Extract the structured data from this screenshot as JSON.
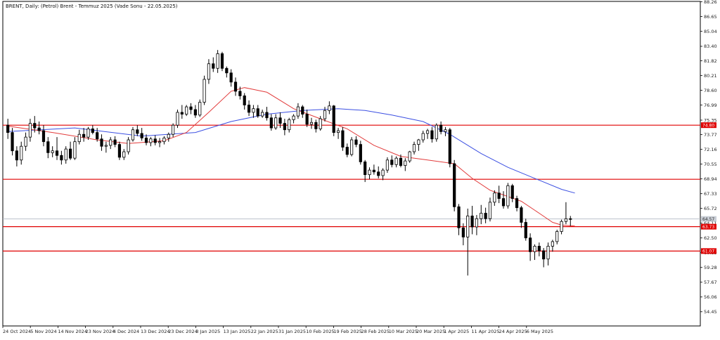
{
  "title": "BRENT, Daily:  (Petrol) Brent - Temmuz 2025 (Vade Sonu - 22.05.2025)",
  "colors": {
    "background": "#ffffff",
    "frame": "#000000",
    "candle": "#000000",
    "ma_fast": "#e23b3b",
    "ma_slow": "#3b4fe2",
    "hline": "#e00000",
    "current_line": "#b0b7c3",
    "tag_red": "#e00000",
    "tag_gray": "#c9ced6"
  },
  "chart_data": {
    "type": "candlestick",
    "title": "BRENT, Daily:  (Petrol) Brent - Temmuz 2025 (Vade Sonu - 22.05.2025)",
    "ylim": [
      52.9,
      88.3
    ],
    "y_ticks": [
      "88.26",
      "86.65",
      "85.04",
      "83.40",
      "81.82",
      "80.21",
      "78.60",
      "76.99",
      "75.35",
      "73.77",
      "72.16",
      "70.55",
      "68.94",
      "67.33",
      "65.72",
      "64.11",
      "62.50",
      "60.89",
      "59.28",
      "57.67",
      "56.06",
      "54.45"
    ],
    "x_labels": [
      "24 Oct 2024",
      "5 Nov 2024",
      "14 Nov 2024",
      "23 Nov 2024",
      "4 Dec 2024",
      "13 Dec 2024",
      "23 Dec 2024",
      "3 Jan 2025",
      "13 Jan 2025",
      "22 Jan 2025",
      "31 Jan 2025",
      "10 Feb 2025",
      "19 Feb 2025",
      "28 Feb 2025",
      "10 Mar 2025",
      "20 Mar 2025",
      "1 Apr 2025",
      "11 Apr 2025",
      "24 Apr 2025",
      "6 May 2025"
    ],
    "horizontal_lines": [
      {
        "value": 74.8,
        "label": "74.80"
      },
      {
        "value": 68.9,
        "label": ""
      },
      {
        "value": 63.73,
        "label": "63.73"
      },
      {
        "value": 61.07,
        "label": "61.07"
      }
    ],
    "current_price": {
      "value": 64.57,
      "label": "64.57"
    },
    "ohlc": [
      [
        74.8,
        75.5,
        73.3,
        74.0
      ],
      [
        74.0,
        74.5,
        71.5,
        72.0
      ],
      [
        72.0,
        72.5,
        70.3,
        71.0
      ],
      [
        71.0,
        73.0,
        70.5,
        72.5
      ],
      [
        72.5,
        74.0,
        72.0,
        73.5
      ],
      [
        73.5,
        75.5,
        73.0,
        75.0
      ],
      [
        75.0,
        75.8,
        74.0,
        74.5
      ],
      [
        74.5,
        75.2,
        73.8,
        74.2
      ],
      [
        74.2,
        74.8,
        72.5,
        73.0
      ],
      [
        73.0,
        73.5,
        71.2,
        71.8
      ],
      [
        71.8,
        72.5,
        71.3,
        72.0
      ],
      [
        72.0,
        73.5,
        71.0,
        71.5
      ],
      [
        71.5,
        72.0,
        70.5,
        71.0
      ],
      [
        71.0,
        72.5,
        70.6,
        72.2
      ],
      [
        72.2,
        73.0,
        71.0,
        71.2
      ],
      [
        71.2,
        73.5,
        71.0,
        73.0
      ],
      [
        73.0,
        74.3,
        72.7,
        73.8
      ],
      [
        73.8,
        74.5,
        73.0,
        73.5
      ],
      [
        73.5,
        74.6,
        73.2,
        74.4
      ],
      [
        74.4,
        74.8,
        73.8,
        74.0
      ],
      [
        74.0,
        74.5,
        73.0,
        73.3
      ],
      [
        73.3,
        73.8,
        72.0,
        72.5
      ],
      [
        72.5,
        73.0,
        71.8,
        72.6
      ],
      [
        72.6,
        73.5,
        72.2,
        73.2
      ],
      [
        73.2,
        73.6,
        72.4,
        72.7
      ],
      [
        72.7,
        73.0,
        71.0,
        71.3
      ],
      [
        71.3,
        72.2,
        71.0,
        71.9
      ],
      [
        71.9,
        73.5,
        71.6,
        73.2
      ],
      [
        73.2,
        74.6,
        73.0,
        74.3
      ],
      [
        74.3,
        74.8,
        73.6,
        73.9
      ],
      [
        73.9,
        74.5,
        73.1,
        73.4
      ],
      [
        73.4,
        73.8,
        72.6,
        72.9
      ],
      [
        72.9,
        73.5,
        72.5,
        73.3
      ],
      [
        73.3,
        73.7,
        72.6,
        72.9
      ],
      [
        72.9,
        73.4,
        72.4,
        73.0
      ],
      [
        73.0,
        73.6,
        72.7,
        73.4
      ],
      [
        73.4,
        74.0,
        73.0,
        73.8
      ],
      [
        73.8,
        75.0,
        73.5,
        74.8
      ],
      [
        74.8,
        76.5,
        74.5,
        76.2
      ],
      [
        76.2,
        77.0,
        75.5,
        76.0
      ],
      [
        76.0,
        77.0,
        75.8,
        76.8
      ],
      [
        76.8,
        77.2,
        76.0,
        76.5
      ],
      [
        76.5,
        77.0,
        75.6,
        75.9
      ],
      [
        75.9,
        77.6,
        75.7,
        77.3
      ],
      [
        77.3,
        80.2,
        77.0,
        79.8
      ],
      [
        79.8,
        82.0,
        79.3,
        81.5
      ],
      [
        81.5,
        82.2,
        80.6,
        81.0
      ],
      [
        81.0,
        83.0,
        80.5,
        82.6
      ],
      [
        82.6,
        82.8,
        80.7,
        81.0
      ],
      [
        81.0,
        81.2,
        80.0,
        80.5
      ],
      [
        80.5,
        80.9,
        79.0,
        79.5
      ],
      [
        79.5,
        80.0,
        78.0,
        78.5
      ],
      [
        78.5,
        79.0,
        77.6,
        78.0
      ],
      [
        78.0,
        78.3,
        76.5,
        77.0
      ],
      [
        77.0,
        77.5,
        75.8,
        76.2
      ],
      [
        76.2,
        77.0,
        75.6,
        76.6
      ],
      [
        76.6,
        77.0,
        75.6,
        75.8
      ],
      [
        75.8,
        76.5,
        75.6,
        76.2
      ],
      [
        76.2,
        76.8,
        75.3,
        75.6
      ],
      [
        75.6,
        76.0,
        74.2,
        74.5
      ],
      [
        74.5,
        76.0,
        74.3,
        75.6
      ],
      [
        75.6,
        76.2,
        74.5,
        75.0
      ],
      [
        75.0,
        75.5,
        73.7,
        74.3
      ],
      [
        74.3,
        75.6,
        74.0,
        75.4
      ],
      [
        75.4,
        76.0,
        75.0,
        75.8
      ],
      [
        75.8,
        77.2,
        75.5,
        76.8
      ],
      [
        76.8,
        77.0,
        75.6,
        76.0
      ],
      [
        76.0,
        76.5,
        74.6,
        74.9
      ],
      [
        74.9,
        75.6,
        74.4,
        75.1
      ],
      [
        75.1,
        75.4,
        74.0,
        74.4
      ],
      [
        74.4,
        75.8,
        74.2,
        75.5
      ],
      [
        75.5,
        76.8,
        75.2,
        76.4
      ],
      [
        76.4,
        77.4,
        76.0,
        76.9
      ],
      [
        76.9,
        77.0,
        73.6,
        74.0
      ],
      [
        74.0,
        74.5,
        73.3,
        74.2
      ],
      [
        74.2,
        74.6,
        72.0,
        72.4
      ],
      [
        72.4,
        72.8,
        71.3,
        71.6
      ],
      [
        71.6,
        73.5,
        71.4,
        73.2
      ],
      [
        73.2,
        73.6,
        72.4,
        72.7
      ],
      [
        72.7,
        73.1,
        70.5,
        70.8
      ],
      [
        70.8,
        71.0,
        68.6,
        69.4
      ],
      [
        69.4,
        70.2,
        68.9,
        69.9
      ],
      [
        69.9,
        70.5,
        69.4,
        69.7
      ],
      [
        69.7,
        70.3,
        69.0,
        69.3
      ],
      [
        69.3,
        70.1,
        68.8,
        69.9
      ],
      [
        69.9,
        71.3,
        69.6,
        71.0
      ],
      [
        71.0,
        71.5,
        70.2,
        70.5
      ],
      [
        70.5,
        71.4,
        70.2,
        71.2
      ],
      [
        71.2,
        71.6,
        70.2,
        70.4
      ],
      [
        70.4,
        71.2,
        69.8,
        70.9
      ],
      [
        70.9,
        72.0,
        70.7,
        71.9
      ],
      [
        71.9,
        73.0,
        71.6,
        72.7
      ],
      [
        72.7,
        73.3,
        72.0,
        73.2
      ],
      [
        73.2,
        74.2,
        72.9,
        73.9
      ],
      [
        73.9,
        74.4,
        73.3,
        74.2
      ],
      [
        74.2,
        74.6,
        72.9,
        73.3
      ],
      [
        73.3,
        75.0,
        73.0,
        74.8
      ],
      [
        74.8,
        75.2,
        73.8,
        74.1
      ],
      [
        74.1,
        74.6,
        73.6,
        74.3
      ],
      [
        74.3,
        74.5,
        70.2,
        70.6
      ],
      [
        70.6,
        71.0,
        65.4,
        65.9
      ],
      [
        65.9,
        66.2,
        62.8,
        63.6
      ],
      [
        63.6,
        64.1,
        61.7,
        62.6
      ],
      [
        62.6,
        65.7,
        58.4,
        64.9
      ],
      [
        64.9,
        66.0,
        62.9,
        63.7
      ],
      [
        63.7,
        65.0,
        62.8,
        64.6
      ],
      [
        64.6,
        66.1,
        64.0,
        65.2
      ],
      [
        65.2,
        65.8,
        64.1,
        64.6
      ],
      [
        64.6,
        66.9,
        64.3,
        66.4
      ],
      [
        66.4,
        67.7,
        66.0,
        67.4
      ],
      [
        67.4,
        68.2,
        66.3,
        66.8
      ],
      [
        66.8,
        67.6,
        65.7,
        66.0
      ],
      [
        66.0,
        68.5,
        65.7,
        68.2
      ],
      [
        68.2,
        68.4,
        66.4,
        66.8
      ],
      [
        66.8,
        67.1,
        65.4,
        65.8
      ],
      [
        65.8,
        66.0,
        63.6,
        64.2
      ],
      [
        64.2,
        64.6,
        62.2,
        62.5
      ],
      [
        62.5,
        63.0,
        60.0,
        61.0
      ],
      [
        61.0,
        61.8,
        60.1,
        61.6
      ],
      [
        61.6,
        62.0,
        60.5,
        61.1
      ],
      [
        61.1,
        61.4,
        59.3,
        60.2
      ],
      [
        60.2,
        62.0,
        59.5,
        61.6
      ],
      [
        61.6,
        62.3,
        61.0,
        62.1
      ],
      [
        62.1,
        63.4,
        61.8,
        63.2
      ],
      [
        63.2,
        64.5,
        62.9,
        64.3
      ],
      [
        64.3,
        66.4,
        64.0,
        64.6
      ],
      [
        64.6,
        64.9,
        63.8,
        64.57
      ]
    ],
    "ma_fast": [
      [
        0,
        74.7
      ],
      [
        10,
        74.0
      ],
      [
        20,
        73.2
      ],
      [
        27,
        72.8
      ],
      [
        35,
        73.1
      ],
      [
        40,
        74.0
      ],
      [
        45,
        76.2
      ],
      [
        50,
        78.5
      ],
      [
        53,
        78.9
      ],
      [
        58,
        78.4
      ],
      [
        64,
        76.6
      ],
      [
        70,
        75.5
      ],
      [
        76,
        74.4
      ],
      [
        82,
        72.6
      ],
      [
        88,
        71.4
      ],
      [
        94,
        71.0
      ],
      [
        100,
        70.6
      ],
      [
        104,
        69.0
      ],
      [
        108,
        67.7
      ],
      [
        115,
        66.5
      ],
      [
        119,
        65.2
      ],
      [
        122,
        64.2
      ],
      [
        124,
        63.9
      ],
      [
        127,
        63.8
      ]
    ],
    "ma_slow": [
      [
        0,
        74.1
      ],
      [
        15,
        74.5
      ],
      [
        30,
        73.6
      ],
      [
        42,
        74.0
      ],
      [
        50,
        75.2
      ],
      [
        58,
        76.0
      ],
      [
        66,
        76.4
      ],
      [
        74,
        76.6
      ],
      [
        80,
        76.4
      ],
      [
        86,
        75.9
      ],
      [
        93,
        75.2
      ],
      [
        99,
        73.8
      ],
      [
        106,
        71.7
      ],
      [
        112,
        70.2
      ],
      [
        118,
        69.0
      ],
      [
        124,
        67.8
      ],
      [
        127,
        67.4
      ]
    ]
  }
}
